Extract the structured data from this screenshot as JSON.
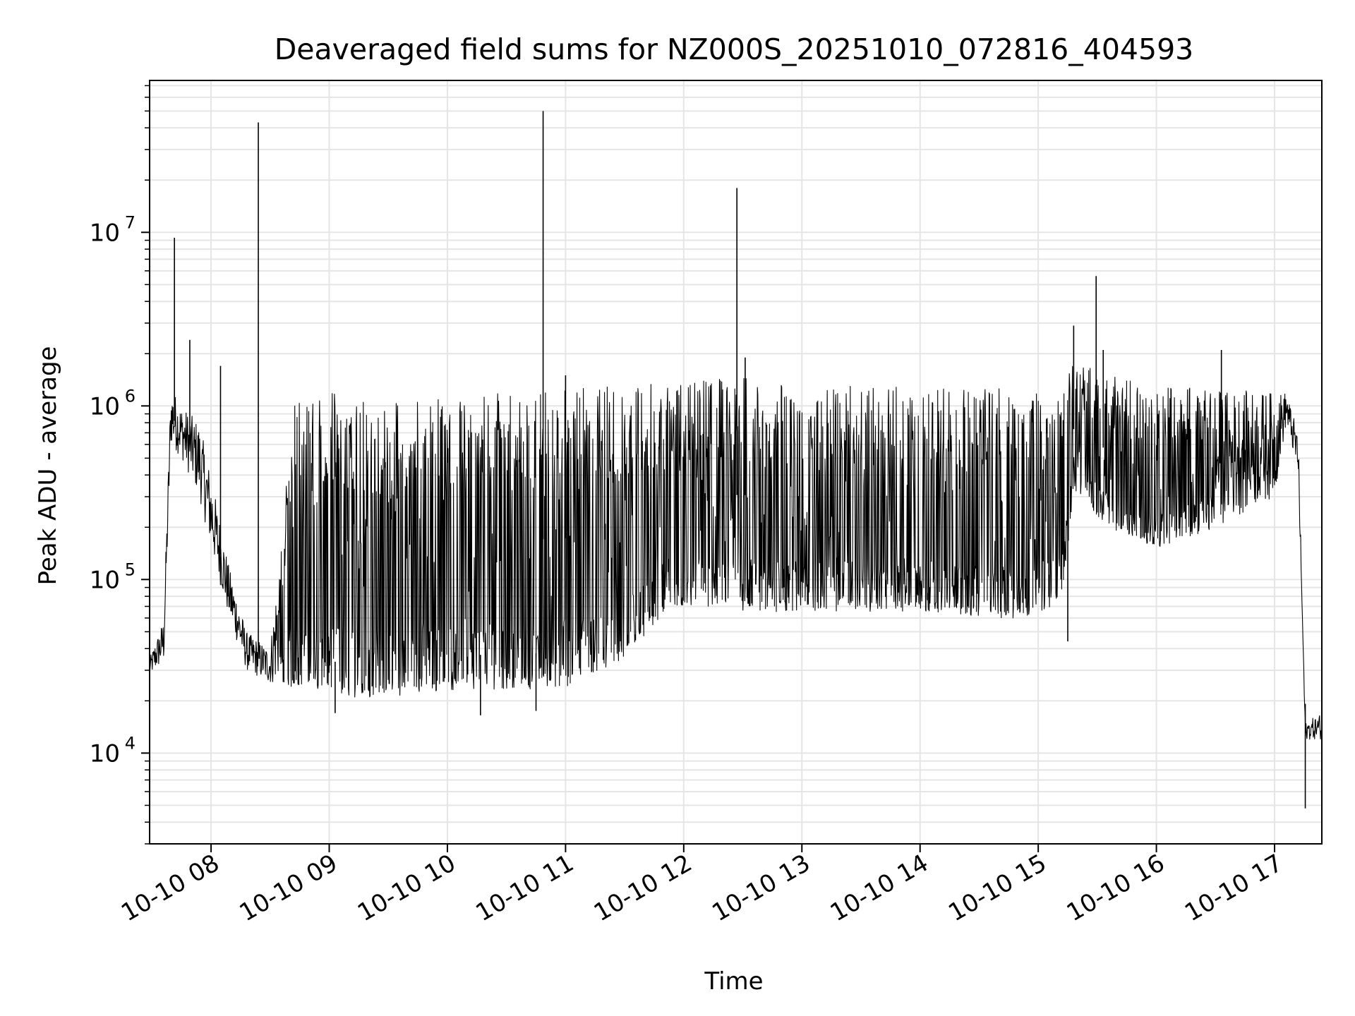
{
  "chart_data": {
    "type": "line",
    "title": "Deaveraged field sums for NZ000S_20251010_072816_404593",
    "xlabel": "Time",
    "ylabel": "Peak ADU - average",
    "yscale": "log",
    "ylim": [
      3000,
      75000000
    ],
    "xlim_hours": [
      7.48,
      17.4
    ],
    "grid": true,
    "line_color": "#000000",
    "grid_color": "#e5e5e5",
    "x_ticks": [
      {
        "hour": 8,
        "label": "10-10 08"
      },
      {
        "hour": 9,
        "label": "10-10 09"
      },
      {
        "hour": 10,
        "label": "10-10 10"
      },
      {
        "hour": 11,
        "label": "10-10 11"
      },
      {
        "hour": 12,
        "label": "10-10 12"
      },
      {
        "hour": 13,
        "label": "10-10 13"
      },
      {
        "hour": 14,
        "label": "10-10 14"
      },
      {
        "hour": 15,
        "label": "10-10 15"
      },
      {
        "hour": 16,
        "label": "10-10 16"
      },
      {
        "hour": 17,
        "label": "10-10 17"
      }
    ],
    "y_ticks": [
      {
        "value": 10000,
        "base": "10",
        "exp": "4"
      },
      {
        "value": 100000,
        "base": "10",
        "exp": "5"
      },
      {
        "value": 1000000,
        "base": "10",
        "exp": "6"
      },
      {
        "value": 10000000,
        "base": "10",
        "exp": "7"
      }
    ],
    "series": [
      {
        "name": "Peak ADU - average",
        "envelope": [
          {
            "hour": 7.48,
            "low": 28000,
            "high": 35000
          },
          {
            "hour": 7.6,
            "low": 33000,
            "high": 60000
          },
          {
            "hour": 7.66,
            "low": 600000,
            "high": 1300000
          },
          {
            "hour": 7.75,
            "low": 500000,
            "high": 1000000
          },
          {
            "hour": 7.9,
            "low": 300000,
            "high": 800000
          },
          {
            "hour": 8.0,
            "low": 150000,
            "high": 400000
          },
          {
            "hour": 8.15,
            "low": 60000,
            "high": 120000
          },
          {
            "hour": 8.3,
            "low": 30000,
            "high": 50000
          },
          {
            "hour": 8.5,
            "low": 25000,
            "high": 40000
          },
          {
            "hour": 8.7,
            "low": 24000,
            "high": 1150000
          },
          {
            "hour": 9.0,
            "low": 21000,
            "high": 1200000
          },
          {
            "hour": 9.5,
            "low": 21000,
            "high": 1100000
          },
          {
            "hour": 10.0,
            "low": 23000,
            "high": 1100000
          },
          {
            "hour": 10.5,
            "low": 23000,
            "high": 1200000
          },
          {
            "hour": 11.0,
            "low": 24000,
            "high": 1250000
          },
          {
            "hour": 11.5,
            "low": 35000,
            "high": 1300000
          },
          {
            "hour": 11.8,
            "low": 60000,
            "high": 1350000
          },
          {
            "hour": 12.0,
            "low": 65000,
            "high": 1400000
          },
          {
            "hour": 12.5,
            "low": 65000,
            "high": 1450000
          },
          {
            "hour": 13.0,
            "low": 65000,
            "high": 1300000
          },
          {
            "hour": 13.5,
            "low": 65000,
            "high": 1300000
          },
          {
            "hour": 14.0,
            "low": 65000,
            "high": 1300000
          },
          {
            "hour": 14.5,
            "low": 60000,
            "high": 1250000
          },
          {
            "hour": 15.0,
            "low": 60000,
            "high": 1300000
          },
          {
            "hour": 15.2,
            "low": 80000,
            "high": 1300000
          },
          {
            "hour": 15.3,
            "low": 300000,
            "high": 1800000
          },
          {
            "hour": 15.6,
            "low": 200000,
            "high": 1500000
          },
          {
            "hour": 16.0,
            "low": 150000,
            "high": 1300000
          },
          {
            "hour": 16.5,
            "low": 200000,
            "high": 1250000
          },
          {
            "hour": 17.0,
            "low": 300000,
            "high": 1200000
          },
          {
            "hour": 17.1,
            "low": 800000,
            "high": 1200000
          },
          {
            "hour": 17.2,
            "low": 400000,
            "high": 700000
          },
          {
            "hour": 17.26,
            "low": 12000,
            "high": 15000
          },
          {
            "hour": 17.4,
            "low": 12000,
            "high": 17000
          }
        ],
        "spikes": [
          {
            "hour": 7.69,
            "value": 9300000
          },
          {
            "hour": 7.82,
            "value": 2400000
          },
          {
            "hour": 8.08,
            "value": 1700000
          },
          {
            "hour": 8.4,
            "value": 43000000
          },
          {
            "hour": 10.81,
            "value": 50000000
          },
          {
            "hour": 11.0,
            "value": 1500000
          },
          {
            "hour": 12.45,
            "value": 18000000
          },
          {
            "hour": 12.52,
            "value": 1900000
          },
          {
            "hour": 15.3,
            "value": 2900000
          },
          {
            "hour": 15.49,
            "value": 5600000
          },
          {
            "hour": 15.55,
            "value": 2100000
          },
          {
            "hour": 16.55,
            "value": 2100000
          }
        ],
        "dips": [
          {
            "hour": 9.05,
            "value": 17000
          },
          {
            "hour": 10.28,
            "value": 16500
          },
          {
            "hour": 10.75,
            "value": 17500
          },
          {
            "hour": 15.25,
            "value": 44000
          },
          {
            "hour": 17.26,
            "value": 4800
          }
        ]
      }
    ]
  }
}
